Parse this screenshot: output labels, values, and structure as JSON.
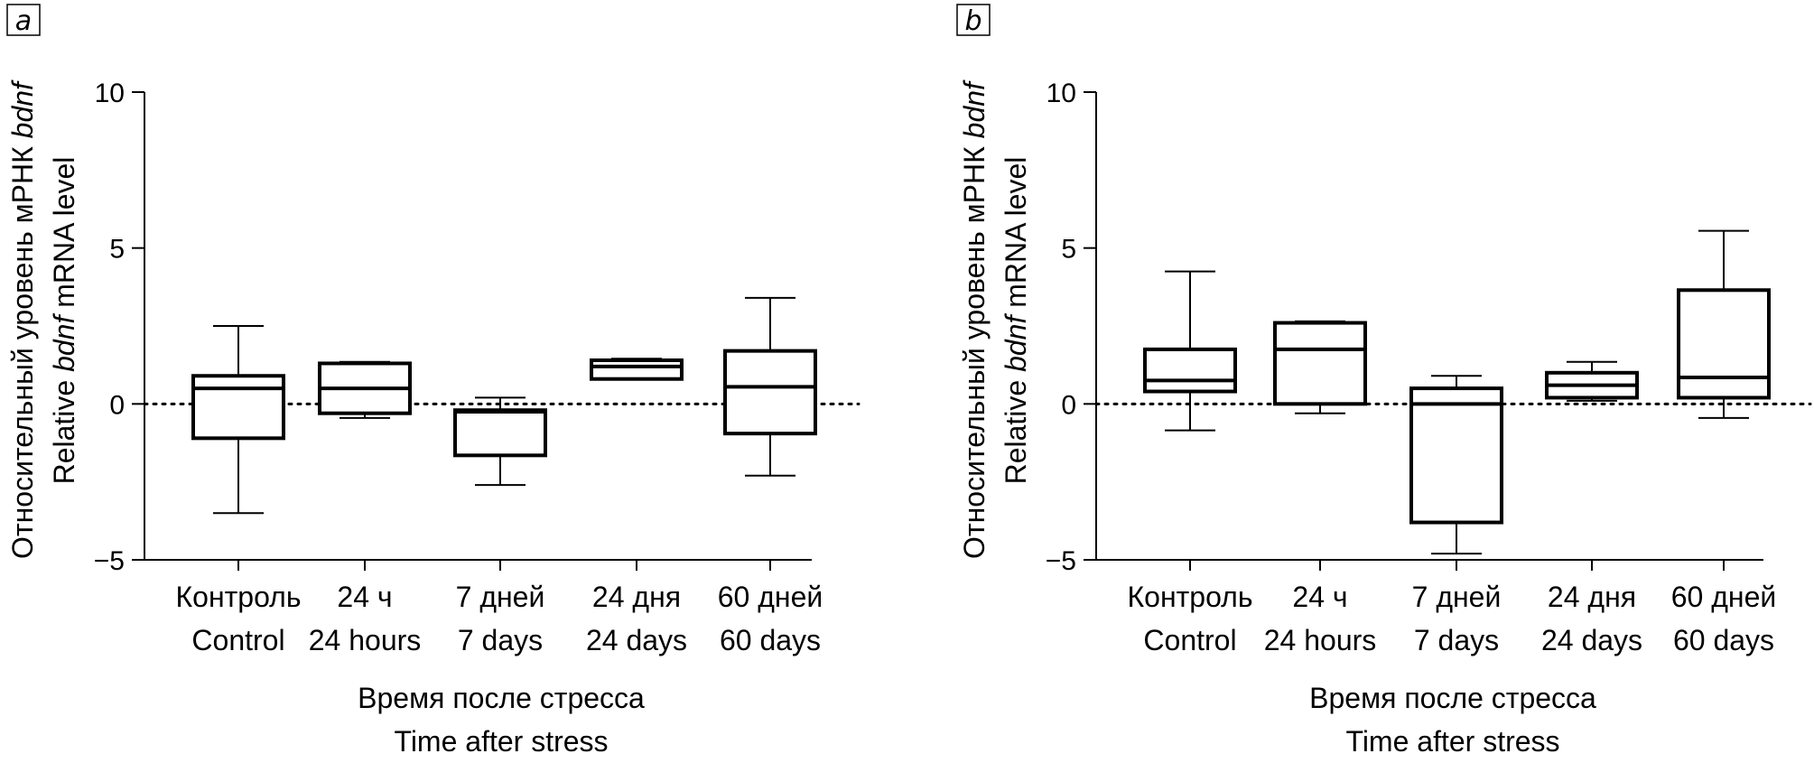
{
  "chart_data": [
    {
      "type": "box",
      "panel_label": "a",
      "ylim": [
        -5,
        10
      ],
      "yticks": [
        10,
        5,
        0,
        -5
      ],
      "ytick_labels": [
        "10",
        "5",
        "0",
        "−5"
      ],
      "ylabel_line1": "Относительный уровень мРНК bdnf",
      "ylabel_line2": "Relative bdnf mRNA level",
      "xlabel_line1": "Время после стресса",
      "xlabel_line2": "Time after stress",
      "reference_line": 0,
      "categories": [
        {
          "ru": "Контроль",
          "en": "Control"
        },
        {
          "ru": "24 ч",
          "en": "24 hours"
        },
        {
          "ru": "7 дней",
          "en": "7 days"
        },
        {
          "ru": "24 дня",
          "en": "24 days"
        },
        {
          "ru": "60 дней",
          "en": "60 days"
        }
      ],
      "boxes": [
        {
          "min": -3.5,
          "q1": -1.1,
          "median": 0.5,
          "q3": 0.9,
          "max": 2.5
        },
        {
          "min": -0.45,
          "q1": -0.3,
          "median": 0.5,
          "q3": 1.3,
          "max": 1.35
        },
        {
          "min": -2.6,
          "q1": -1.65,
          "median": -0.25,
          "q3": -0.2,
          "max": 0.2
        },
        {
          "min": 0.8,
          "q1": 0.8,
          "median": 1.2,
          "q3": 1.4,
          "max": 1.45
        },
        {
          "min": -2.3,
          "q1": -0.95,
          "median": 0.55,
          "q3": 1.7,
          "max": 3.4
        }
      ]
    },
    {
      "type": "box",
      "panel_label": "b",
      "ylim": [
        -5,
        10
      ],
      "yticks": [
        10,
        5,
        0,
        -5
      ],
      "ytick_labels": [
        "10",
        "5",
        "0",
        "−5"
      ],
      "ylabel_line1": "Относительный уровень мРНК bdnf",
      "ylabel_line2": "Relative bdnf mRNA level",
      "xlabel_line1": "Время после стресса",
      "xlabel_line2": "Time after stress",
      "reference_line": 0,
      "categories": [
        {
          "ru": "Контроль",
          "en": "Control"
        },
        {
          "ru": "24 ч",
          "en": "24 hours"
        },
        {
          "ru": "7 дней",
          "en": "7 days"
        },
        {
          "ru": "24 дня",
          "en": "24 days"
        },
        {
          "ru": "60 дней",
          "en": "60 days"
        }
      ],
      "boxes": [
        {
          "min": -0.85,
          "q1": 0.4,
          "median": 0.75,
          "q3": 1.75,
          "max": 4.25
        },
        {
          "min": -0.3,
          "q1": 0.0,
          "median": 1.75,
          "q3": 2.6,
          "max": 2.65
        },
        {
          "min": -4.8,
          "q1": -3.8,
          "median": 0.0,
          "q3": 0.5,
          "max": 0.9
        },
        {
          "min": 0.1,
          "q1": 0.2,
          "median": 0.6,
          "q3": 1.0,
          "max": 1.35
        },
        {
          "min": -0.45,
          "q1": 0.2,
          "median": 0.85,
          "q3": 3.65,
          "max": 5.55
        }
      ]
    }
  ]
}
